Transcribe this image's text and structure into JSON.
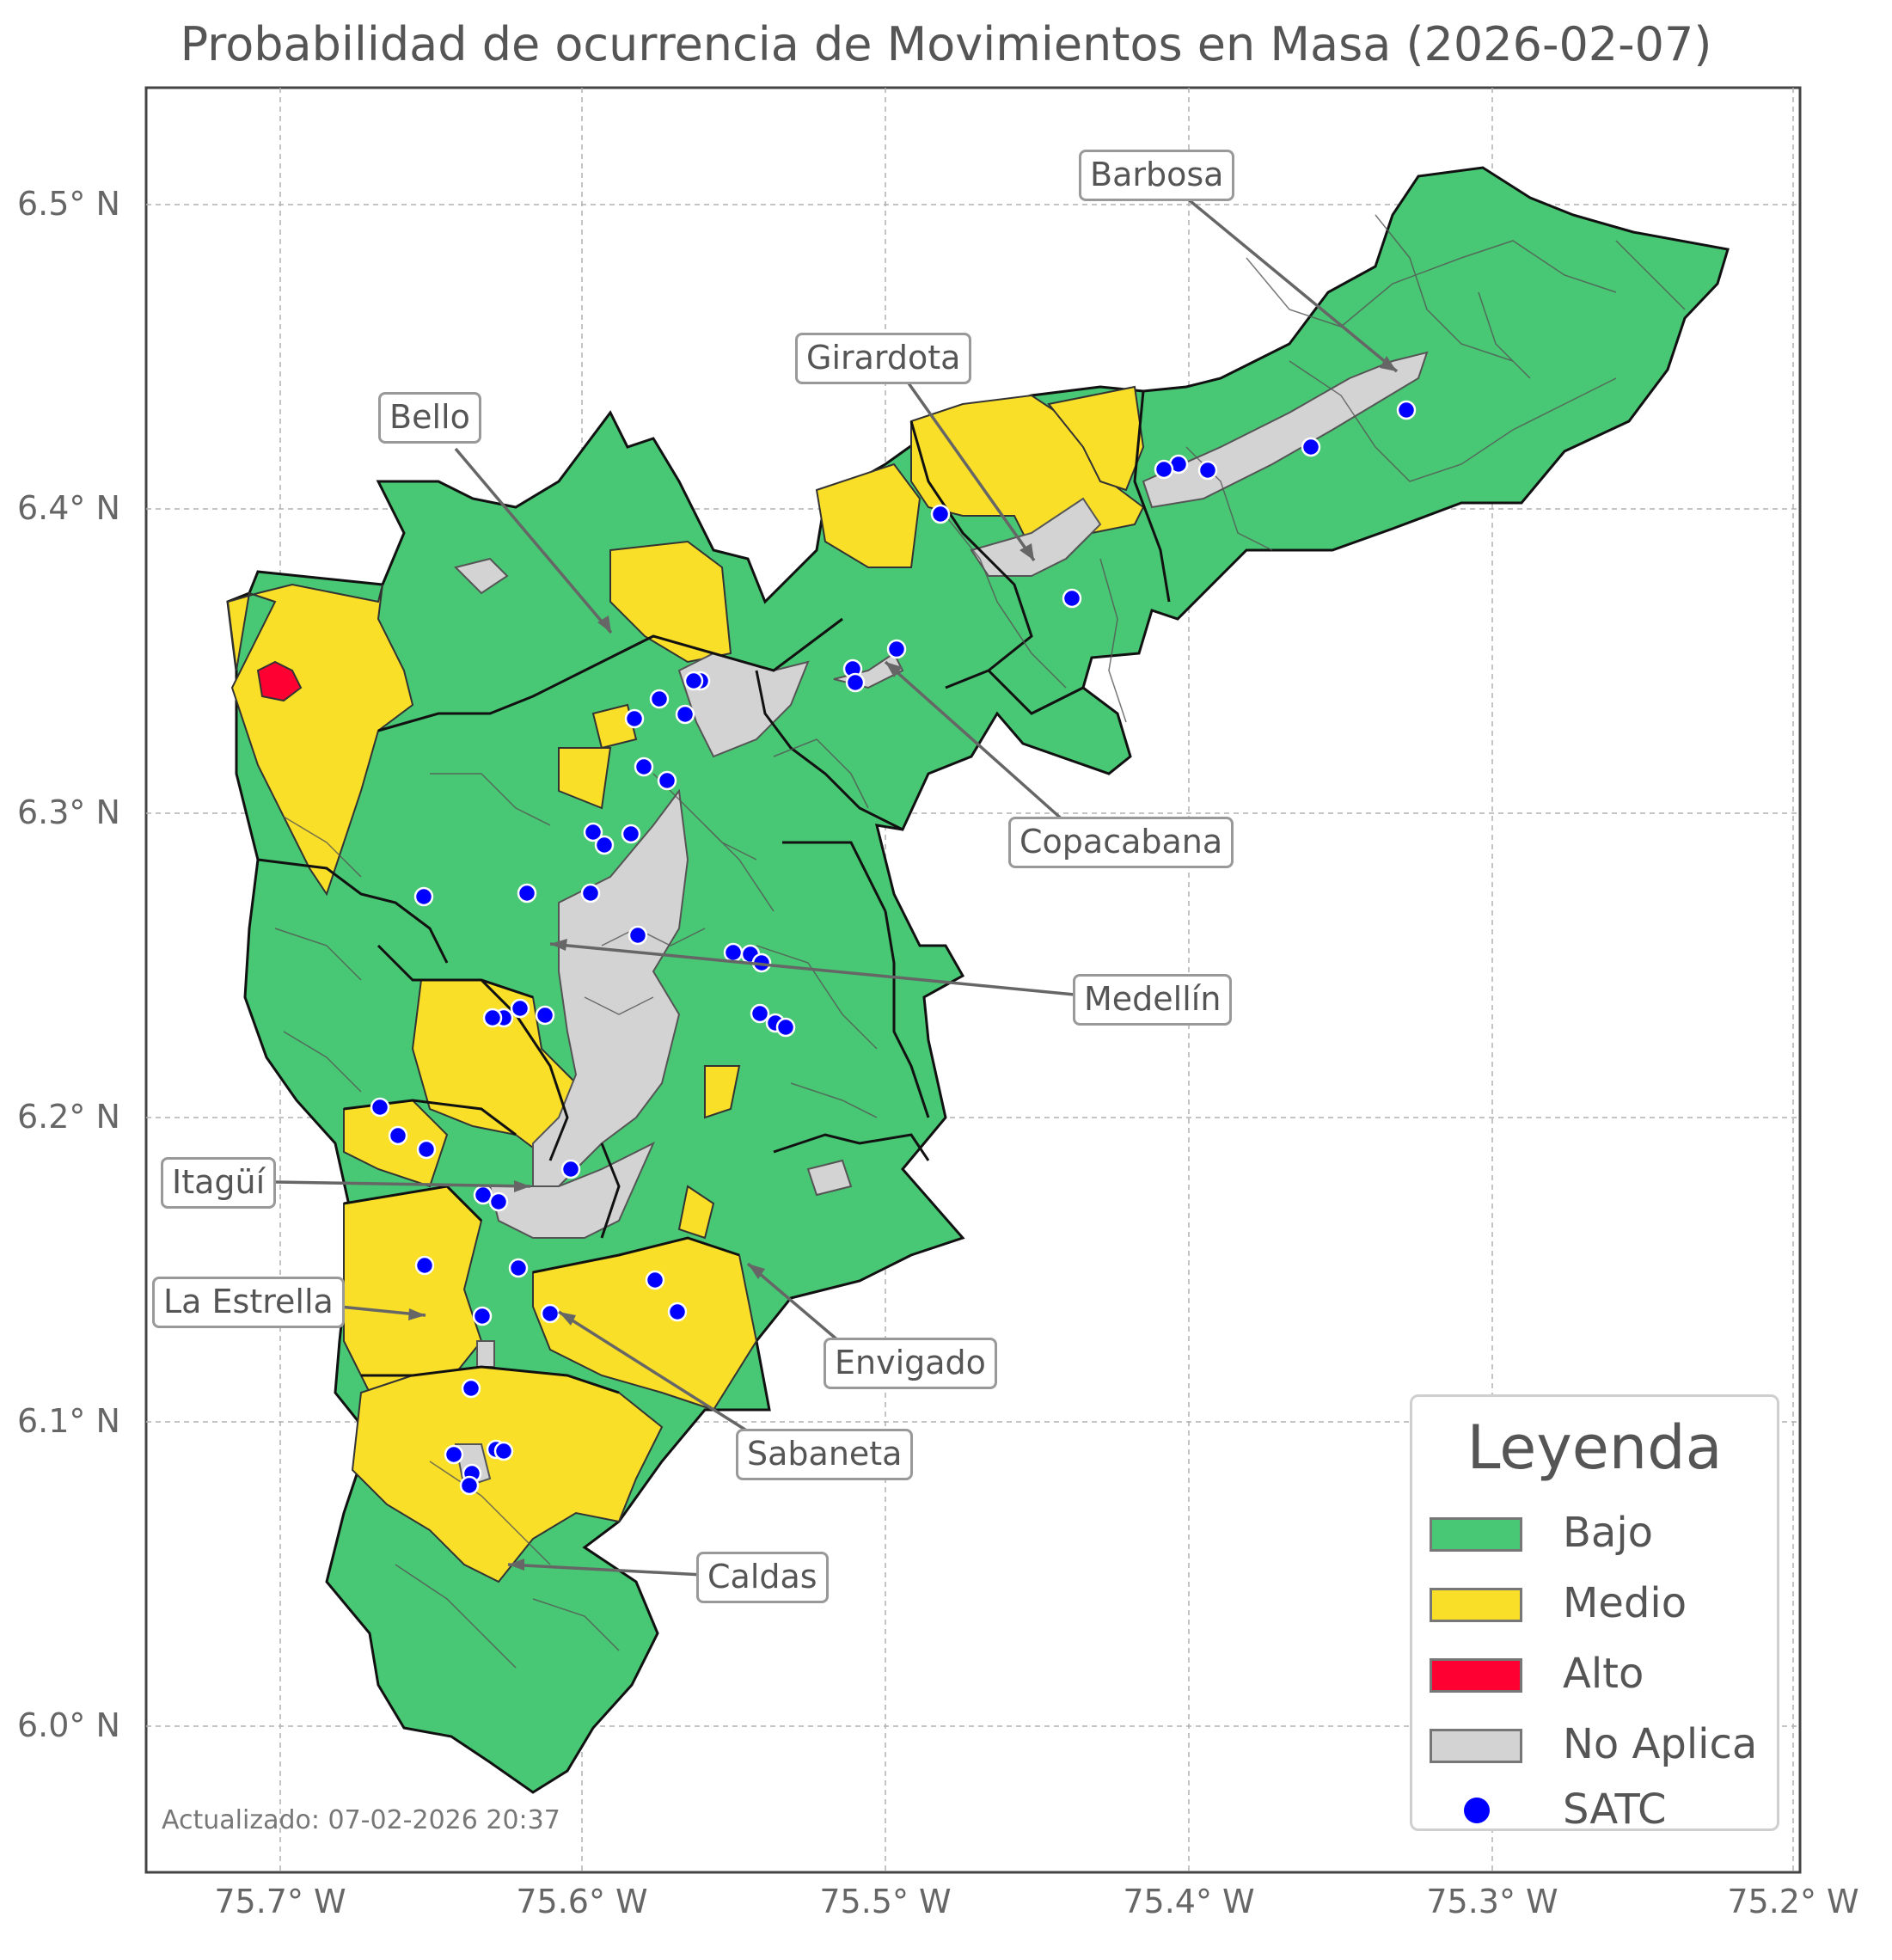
{
  "title": "Probabilidad de ocurrencia de Movimientos en Masa (2026-02-07)",
  "y_ticks": [
    "6.5° N",
    "6.4° N",
    "6.3° N",
    "6.2° N",
    "6.1° N",
    "6.0° N"
  ],
  "x_ticks": [
    "75.7° W",
    "75.6° W",
    "75.5° W",
    "75.4° W",
    "75.3° W",
    "75.2° W"
  ],
  "municipalities": [
    {
      "name": "Barbosa"
    },
    {
      "name": "Girardota"
    },
    {
      "name": "Bello"
    },
    {
      "name": "Copacabana"
    },
    {
      "name": "Medellín"
    },
    {
      "name": "Itagüí"
    },
    {
      "name": "La Estrella"
    },
    {
      "name": "Envigado"
    },
    {
      "name": "Sabaneta"
    },
    {
      "name": "Caldas"
    }
  ],
  "legend": {
    "title": "Leyenda",
    "items": [
      {
        "label": "Bajo",
        "color": "#48c774"
      },
      {
        "label": "Medio",
        "color": "#fadf28"
      },
      {
        "label": "Alto",
        "color": "#ff0033"
      },
      {
        "label": "No Aplica",
        "color": "#d3d3d3"
      },
      {
        "label": "SATC",
        "color": "#0000ff"
      }
    ]
  },
  "updated": "Actualizado: 07-02-2026 20:37",
  "colors": {
    "bajo": "#48c774",
    "medio": "#fadf28",
    "alto": "#ff0033",
    "no_aplica": "#d3d3d3",
    "satc": "#0000ff"
  }
}
